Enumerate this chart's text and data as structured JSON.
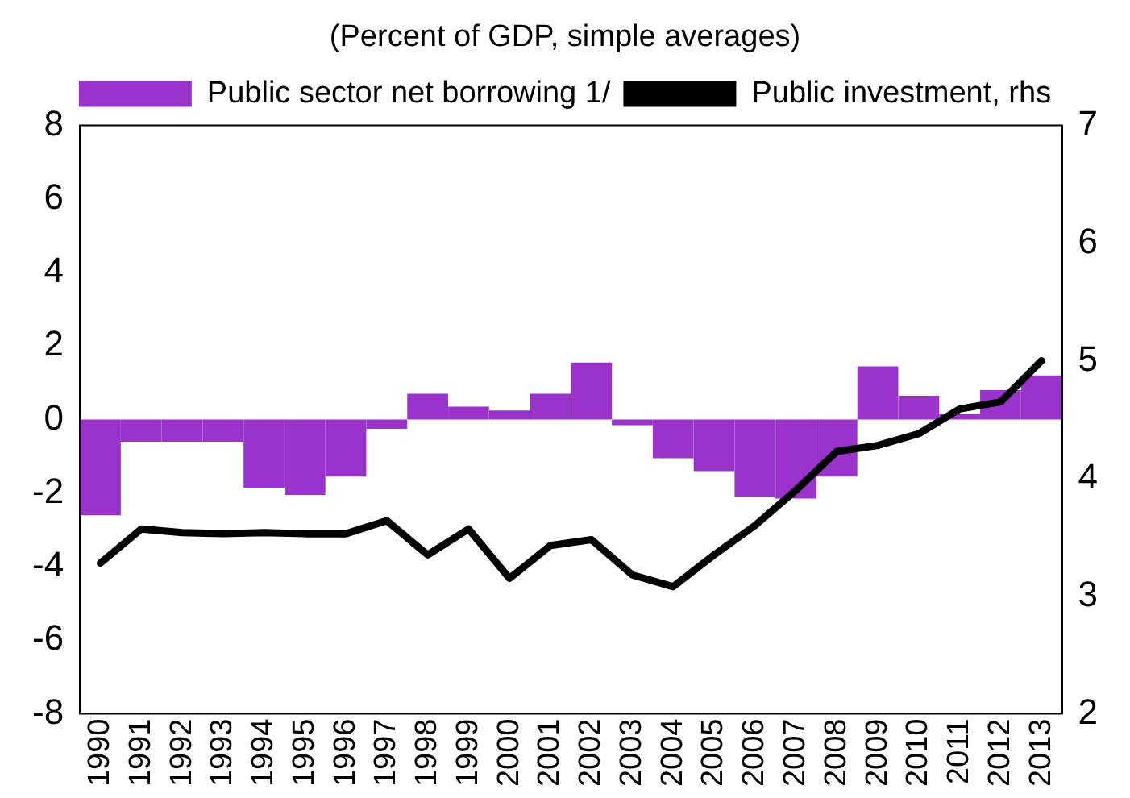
{
  "chart_data": {
    "type": "bar",
    "title": "(Percent of GDP, simple averages)",
    "categories": [
      "1990",
      "1991",
      "1992",
      "1993",
      "1994",
      "1995",
      "1996",
      "1997",
      "1998",
      "1999",
      "2000",
      "2001",
      "2002",
      "2003",
      "2004",
      "2005",
      "2006",
      "2007",
      "2008",
      "2009",
      "2010",
      "2011",
      "2012",
      "2013"
    ],
    "series": [
      {
        "name": "Public sector net borrowing 1/",
        "color": "#9933cc",
        "values": [
          -2.6,
          -0.6,
          -0.6,
          -0.6,
          -1.85,
          -2.05,
          -1.55,
          -0.25,
          0.7,
          0.35,
          0.25,
          0.7,
          1.55,
          -0.15,
          -1.05,
          -1.4,
          -2.1,
          -2.15,
          -1.55,
          1.45,
          0.65,
          0.15,
          0.8,
          1.2
        ]
      },
      {
        "name": "Public investment, rhs",
        "type": "line",
        "axis": "y2",
        "color": "#000000",
        "values": [
          3.28,
          3.57,
          3.54,
          3.53,
          3.54,
          3.53,
          3.53,
          3.64,
          3.35,
          3.57,
          3.15,
          3.43,
          3.48,
          3.18,
          3.08,
          3.35,
          3.6,
          3.9,
          4.23,
          4.28,
          4.38,
          4.59,
          4.65,
          5.0
        ]
      }
    ],
    "ylim": [
      -8,
      8
    ],
    "yticks": [
      -8,
      -6,
      -4,
      -2,
      0,
      2,
      4,
      6,
      8
    ],
    "y2lim": [
      2,
      7
    ],
    "y2ticks": [
      2,
      3,
      4,
      5,
      6,
      7
    ],
    "grid": false,
    "legend": "top",
    "marker": "none",
    "line_style": "solid"
  }
}
